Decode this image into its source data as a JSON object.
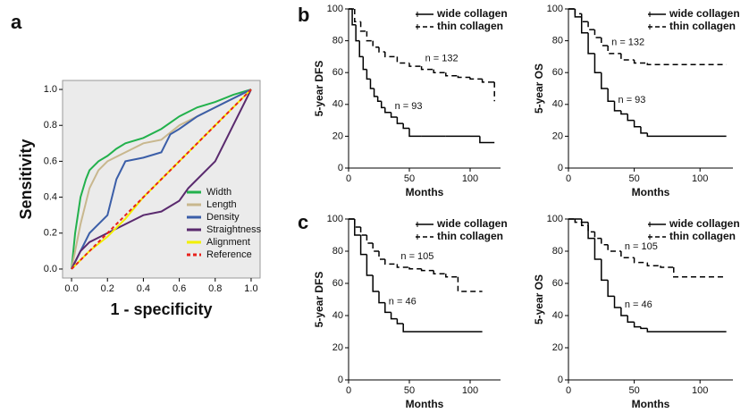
{
  "panel_labels": [
    "a",
    "b",
    "c"
  ],
  "chart_data": [
    {
      "type": "line",
      "xlabel": "1 - specificity",
      "ylabel": "Sensitivity",
      "xlim": [
        -0.05,
        1.05
      ],
      "ylim": [
        -0.05,
        1.05
      ],
      "xticks": [
        {
          "value": 0,
          "label": "0.0"
        },
        0.2,
        0.4,
        0.6,
        0.8,
        {
          "value": 1,
          "label": "1.0"
        }
      ],
      "yticks": [
        {
          "value": 0,
          "label": "0.0"
        },
        0.2,
        0.4,
        0.6,
        0.8,
        {
          "value": 1,
          "label": "1.0"
        }
      ],
      "legend": "lower right",
      "background": "#ebebeb",
      "series": [
        {
          "name": "Width",
          "color": "#22b14c",
          "x": [
            0,
            0.02,
            0.05,
            0.08,
            0.1,
            0.15,
            0.2,
            0.25,
            0.3,
            0.4,
            0.5,
            0.6,
            0.7,
            0.8,
            0.9,
            1
          ],
          "values": [
            0,
            0.2,
            0.4,
            0.5,
            0.55,
            0.6,
            0.63,
            0.67,
            0.7,
            0.73,
            0.78,
            0.85,
            0.9,
            0.93,
            0.97,
            1
          ]
        },
        {
          "name": "Length",
          "color": "#c8b78e",
          "x": [
            0,
            0.05,
            0.1,
            0.15,
            0.2,
            0.3,
            0.4,
            0.5,
            0.6,
            0.7,
            0.8,
            0.9,
            1
          ],
          "values": [
            0,
            0.25,
            0.45,
            0.55,
            0.6,
            0.65,
            0.7,
            0.72,
            0.8,
            0.85,
            0.9,
            0.95,
            1
          ]
        },
        {
          "name": "Density",
          "color": "#3b5ea8",
          "x": [
            0,
            0.05,
            0.1,
            0.2,
            0.25,
            0.3,
            0.4,
            0.5,
            0.55,
            0.6,
            0.7,
            0.8,
            0.9,
            1
          ],
          "values": [
            0,
            0.1,
            0.2,
            0.3,
            0.5,
            0.6,
            0.62,
            0.65,
            0.75,
            0.78,
            0.85,
            0.9,
            0.95,
            1
          ]
        },
        {
          "name": "Straightness",
          "color": "#5a2a6e",
          "x": [
            0,
            0.05,
            0.1,
            0.2,
            0.3,
            0.4,
            0.5,
            0.6,
            0.65,
            0.7,
            0.8,
            0.9,
            1
          ],
          "values": [
            0,
            0.1,
            0.15,
            0.2,
            0.25,
            0.3,
            0.32,
            0.38,
            0.45,
            0.5,
            0.6,
            0.8,
            1
          ]
        },
        {
          "name": "Alignment",
          "color": "#f2f000",
          "x": [
            0,
            0.1,
            0.2,
            0.3,
            0.4,
            0.5,
            0.6,
            0.7,
            0.8,
            0.9,
            1
          ],
          "values": [
            0,
            0.1,
            0.18,
            0.28,
            0.4,
            0.5,
            0.6,
            0.7,
            0.8,
            0.9,
            1
          ]
        },
        {
          "name": "Reference",
          "color": "#e8221c",
          "dash": true,
          "x": [
            0,
            1
          ],
          "values": [
            0,
            1
          ]
        }
      ]
    },
    {
      "type": "step",
      "xlabel": "Months",
      "ylabel": "5-year DFS",
      "xlim": [
        0,
        125
      ],
      "ylim": [
        0,
        100
      ],
      "xticks": [
        0,
        50,
        100
      ],
      "yticks": [
        0,
        20,
        40,
        60,
        80,
        100
      ],
      "legend": "upper right",
      "series": [
        {
          "name": "wide collagen",
          "color": "#000000",
          "annotation": "n = 93",
          "x": [
            0,
            3,
            6,
            9,
            12,
            15,
            18,
            21,
            24,
            27,
            30,
            35,
            40,
            45,
            50,
            60,
            80,
            100,
            108,
            120
          ],
          "values": [
            100,
            90,
            80,
            70,
            62,
            56,
            50,
            45,
            42,
            38,
            35,
            32,
            28,
            25,
            20,
            20,
            20,
            20,
            16,
            16
          ]
        },
        {
          "name": "thin collagen",
          "color": "#000000",
          "dash": true,
          "annotation": "n = 132",
          "x": [
            0,
            5,
            10,
            15,
            20,
            25,
            30,
            40,
            50,
            60,
            70,
            80,
            90,
            100,
            110,
            118,
            120
          ],
          "values": [
            100,
            92,
            86,
            80,
            76,
            73,
            70,
            66,
            64,
            62,
            60,
            58,
            57,
            56,
            54,
            54,
            42
          ]
        }
      ]
    },
    {
      "type": "step",
      "xlabel": "Months",
      "ylabel": "5-year OS",
      "xlim": [
        0,
        125
      ],
      "ylim": [
        0,
        100
      ],
      "xticks": [
        0,
        50,
        100
      ],
      "yticks": [
        0,
        20,
        40,
        60,
        80,
        100
      ],
      "legend": "upper right",
      "series": [
        {
          "name": "wide collagen",
          "color": "#000000",
          "annotation": "n = 93",
          "x": [
            0,
            5,
            10,
            15,
            20,
            25,
            30,
            35,
            40,
            45,
            50,
            55,
            60,
            120
          ],
          "values": [
            100,
            95,
            85,
            72,
            60,
            50,
            42,
            36,
            34,
            30,
            26,
            22,
            20,
            20
          ]
        },
        {
          "name": "thin collagen",
          "color": "#000000",
          "dash": true,
          "annotation": "n = 132",
          "x": [
            0,
            5,
            10,
            15,
            20,
            25,
            30,
            40,
            50,
            60,
            120
          ],
          "values": [
            100,
            97,
            92,
            87,
            82,
            77,
            72,
            68,
            66,
            65,
            65
          ]
        }
      ]
    },
    {
      "type": "step",
      "xlabel": "Months",
      "ylabel": "5-year DFS",
      "xlim": [
        0,
        125
      ],
      "ylim": [
        0,
        100
      ],
      "xticks": [
        0,
        50,
        100
      ],
      "yticks": [
        0,
        20,
        40,
        60,
        80,
        100
      ],
      "legend": "upper right",
      "series": [
        {
          "name": "wide collagen",
          "color": "#000000",
          "annotation": "n = 46",
          "x": [
            0,
            5,
            10,
            15,
            20,
            25,
            30,
            35,
            40,
            45,
            110
          ],
          "values": [
            100,
            90,
            78,
            65,
            55,
            48,
            42,
            38,
            35,
            30,
            30
          ]
        },
        {
          "name": "thin collagen",
          "color": "#000000",
          "dash": true,
          "annotation": "n = 105",
          "x": [
            0,
            5,
            10,
            15,
            20,
            25,
            30,
            40,
            50,
            60,
            70,
            80,
            90,
            110
          ],
          "values": [
            100,
            95,
            90,
            85,
            80,
            75,
            72,
            70,
            69,
            68,
            66,
            64,
            55,
            55
          ]
        }
      ]
    },
    {
      "type": "step",
      "xlabel": "Months",
      "ylabel": "5-year OS",
      "xlim": [
        0,
        125
      ],
      "ylim": [
        0,
        100
      ],
      "xticks": [
        0,
        50,
        100
      ],
      "yticks": [
        0,
        20,
        40,
        60,
        80,
        100
      ],
      "legend": "upper right",
      "series": [
        {
          "name": "wide collagen",
          "color": "#000000",
          "annotation": "n = 46",
          "x": [
            0,
            10,
            15,
            20,
            25,
            30,
            35,
            40,
            45,
            50,
            55,
            60,
            120
          ],
          "values": [
            100,
            98,
            88,
            75,
            62,
            52,
            45,
            40,
            36,
            33,
            32,
            30,
            30
          ]
        },
        {
          "name": "thin collagen",
          "color": "#000000",
          "dash": true,
          "annotation": "n = 105",
          "x": [
            0,
            5,
            10,
            15,
            20,
            25,
            30,
            40,
            50,
            60,
            70,
            80,
            120
          ],
          "values": [
            100,
            98,
            96,
            92,
            88,
            84,
            80,
            76,
            73,
            71,
            70,
            64,
            64
          ]
        }
      ]
    }
  ]
}
